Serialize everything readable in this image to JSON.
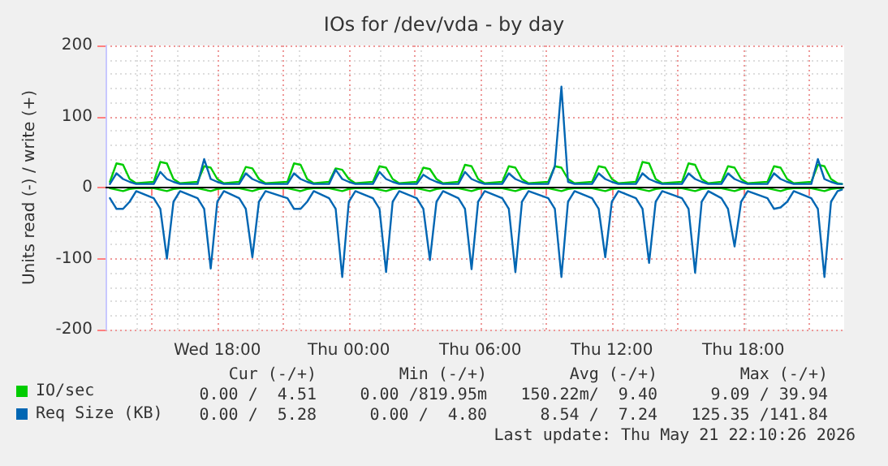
{
  "chart_data": {
    "type": "line",
    "title": "IOs for /dev/vda - by day",
    "ylabel": "Units read (-) / write (+)",
    "x": [
      "2026-05-20T13:06",
      "2026-05-20T13:24",
      "2026-05-20T13:42",
      "2026-05-20T14:00",
      "2026-05-20T14:18",
      "2026-05-20T15:06",
      "2026-05-20T15:24",
      "2026-05-20T15:42",
      "2026-05-20T16:00",
      "2026-05-20T16:18",
      "2026-05-20T17:06",
      "2026-05-20T17:24",
      "2026-05-20T17:42",
      "2026-05-20T18:00",
      "2026-05-20T18:18",
      "2026-05-20T19:00",
      "2026-05-20T19:18",
      "2026-05-20T19:36",
      "2026-05-20T19:54",
      "2026-05-20T20:12",
      "2026-05-20T21:12",
      "2026-05-20T21:30",
      "2026-05-20T21:48",
      "2026-05-20T22:06",
      "2026-05-20T22:24",
      "2026-05-20T23:06",
      "2026-05-20T23:24",
      "2026-05-20T23:42",
      "2026-05-21T00:00",
      "2026-05-21T00:18",
      "2026-05-21T01:06",
      "2026-05-21T01:24",
      "2026-05-21T01:42",
      "2026-05-21T02:00",
      "2026-05-21T02:18",
      "2026-05-21T03:06",
      "2026-05-21T03:24",
      "2026-05-21T03:42",
      "2026-05-21T04:00",
      "2026-05-21T04:18",
      "2026-05-21T05:00",
      "2026-05-21T05:18",
      "2026-05-21T05:36",
      "2026-05-21T05:54",
      "2026-05-21T06:12",
      "2026-05-21T07:00",
      "2026-05-21T07:18",
      "2026-05-21T07:36",
      "2026-05-21T07:54",
      "2026-05-21T08:12",
      "2026-05-21T09:06",
      "2026-05-21T09:24",
      "2026-05-21T09:42",
      "2026-05-21T10:00",
      "2026-05-21T10:18",
      "2026-05-21T11:06",
      "2026-05-21T11:24",
      "2026-05-21T11:42",
      "2026-05-21T12:00",
      "2026-05-21T12:18",
      "2026-05-21T13:06",
      "2026-05-21T13:24",
      "2026-05-21T13:42",
      "2026-05-21T14:00",
      "2026-05-21T14:18",
      "2026-05-21T15:12",
      "2026-05-21T15:30",
      "2026-05-21T15:48",
      "2026-05-21T16:06",
      "2026-05-21T16:24",
      "2026-05-21T17:00",
      "2026-05-21T17:18",
      "2026-05-21T17:36",
      "2026-05-21T17:54",
      "2026-05-21T18:12",
      "2026-05-21T19:06",
      "2026-05-21T19:24",
      "2026-05-21T19:42",
      "2026-05-21T20:00",
      "2026-05-21T20:18",
      "2026-05-21T21:06",
      "2026-05-21T21:24",
      "2026-05-21T21:42",
      "2026-05-21T22:00",
      "2026-05-21T22:18",
      "2026-05-21T22:30"
    ],
    "series": [
      {
        "name": "IO/sec",
        "color": "#00cc00",
        "values": [
          8,
          34,
          32,
          12,
          6,
          8,
          36,
          34,
          12,
          6,
          8,
          30,
          28,
          12,
          6,
          8,
          29,
          27,
          12,
          6,
          8,
          34,
          32,
          12,
          6,
          8,
          27,
          25,
          12,
          6,
          8,
          30,
          28,
          12,
          6,
          8,
          28,
          26,
          12,
          6,
          8,
          32,
          30,
          12,
          6,
          8,
          30,
          28,
          12,
          6,
          8,
          30,
          28,
          12,
          6,
          8,
          30,
          28,
          12,
          6,
          8,
          36,
          34,
          12,
          6,
          8,
          34,
          32,
          12,
          6,
          8,
          30,
          28,
          12,
          6,
          8,
          30,
          28,
          12,
          6,
          8,
          32,
          30,
          12,
          6,
          5
        ]
      },
      {
        "color": "#00cc00",
        "values": [
          -1,
          -3,
          -5,
          -2,
          -1,
          -1,
          -3,
          -5,
          -2,
          -1,
          -1,
          -3,
          -5,
          -2,
          -1,
          -1,
          -3,
          -5,
          -2,
          -1,
          -1,
          -3,
          -5,
          -2,
          -1,
          -1,
          -3,
          -5,
          -2,
          -1,
          -1,
          -3,
          -5,
          -2,
          -1,
          -1,
          -3,
          -5,
          -2,
          -1,
          -1,
          -3,
          -5,
          -2,
          -1,
          -1,
          -3,
          -5,
          -2,
          -1,
          -1,
          -3,
          -5,
          -2,
          -1,
          -1,
          -3,
          -5,
          -2,
          -1,
          -1,
          -3,
          -5,
          -2,
          -1,
          -1,
          -3,
          -5,
          -2,
          -1,
          -1,
          -3,
          -5,
          -2,
          -1,
          -1,
          -3,
          -5,
          -2,
          -1,
          -1,
          -3,
          -5,
          -2,
          -1,
          -1
        ]
      },
      {
        "name": "Req Size (KB)",
        "color": "#0066b3",
        "values": [
          5,
          20,
          12,
          8,
          5,
          5,
          22,
          12,
          8,
          5,
          5,
          40,
          12,
          8,
          5,
          5,
          20,
          12,
          8,
          5,
          5,
          20,
          12,
          8,
          5,
          5,
          25,
          12,
          8,
          5,
          5,
          22,
          12,
          8,
          5,
          5,
          18,
          12,
          8,
          5,
          5,
          22,
          12,
          8,
          5,
          5,
          20,
          12,
          8,
          5,
          5,
          30,
          142,
          8,
          5,
          5,
          20,
          12,
          8,
          5,
          5,
          20,
          12,
          8,
          5,
          5,
          20,
          12,
          8,
          5,
          5,
          20,
          12,
          8,
          5,
          5,
          20,
          12,
          8,
          5,
          5,
          40,
          12,
          8,
          5,
          5
        ]
      },
      {
        "color": "#0066b3",
        "values": [
          -15,
          -30,
          -30,
          -20,
          -5,
          -15,
          -30,
          -100,
          -20,
          -5,
          -15,
          -30,
          -114,
          -20,
          -5,
          -15,
          -30,
          -98,
          -20,
          -5,
          -15,
          -30,
          -30,
          -20,
          -5,
          -15,
          -30,
          -126,
          -20,
          -5,
          -15,
          -30,
          -119,
          -20,
          -5,
          -15,
          -30,
          -102,
          -20,
          -5,
          -15,
          -30,
          -115,
          -20,
          -5,
          -15,
          -30,
          -119,
          -20,
          -5,
          -15,
          -30,
          -126,
          -20,
          -5,
          -15,
          -30,
          -98,
          -20,
          -5,
          -15,
          -30,
          -106,
          -20,
          -5,
          -15,
          -30,
          -120,
          -20,
          -5,
          -15,
          -30,
          -83,
          -20,
          -5,
          -15,
          -30,
          -28,
          -20,
          -5,
          -15,
          -30,
          -126,
          -20,
          -5,
          -3
        ]
      }
    ],
    "xlim": [
      "2026-05-20T12:54",
      "2026-05-21T22:36"
    ],
    "xticks": [
      {
        "value": "2026-05-20T15:00",
        "label": null
      },
      {
        "value": "2026-05-20T18:00",
        "label": "Wed 18:00"
      },
      {
        "value": "2026-05-20T21:00",
        "label": null
      },
      {
        "value": "2026-05-21T00:00",
        "label": "Thu 00:00"
      },
      {
        "value": "2026-05-21T03:00",
        "label": null
      },
      {
        "value": "2026-05-21T06:00",
        "label": "Thu 06:00"
      },
      {
        "value": "2026-05-21T09:00",
        "label": null
      },
      {
        "value": "2026-05-21T12:00",
        "label": "Thu 12:00"
      },
      {
        "value": "2026-05-21T15:00",
        "label": null
      },
      {
        "value": "2026-05-21T18:00",
        "label": "Thu 18:00"
      },
      {
        "value": "2026-05-21T21:00",
        "label": null
      }
    ],
    "ylim": [
      -200,
      200
    ],
    "yticks": [
      -200,
      -100,
      0,
      100,
      200
    ],
    "ref_lines": [
      {
        "axis": "y",
        "value": 0,
        "color": "#000000"
      }
    ],
    "grid": true,
    "legend": "bottom left",
    "marker": "none",
    "line_style": "solid",
    "annotations": [
      "Cur (-/+)",
      "Min (-/+)",
      "Avg (-/+)",
      "Max (-/+)",
      "0.00 /  4.51",
      "0.00 /819.95m",
      "150.22m/  9.40",
      "9.09 / 39.94",
      "0.00 /  5.28",
      "0.00 /  4.80",
      "8.54 /  7.24",
      "125.35 /141.84",
      "Last update: Thu May 21 22:10:26 2026"
    ]
  }
}
